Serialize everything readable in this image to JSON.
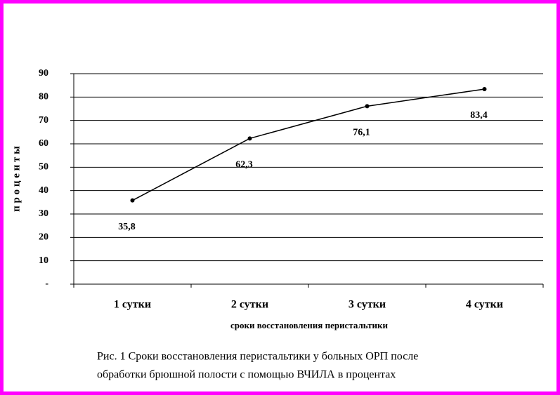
{
  "chart_data": {
    "type": "line",
    "y_label": "п р о ц е н т ы",
    "x_label": "сроки восстановления перистальтики",
    "categories": [
      "1 сутки",
      "2 сутки",
      "3 сутки",
      "4 сутки"
    ],
    "values": [
      35.8,
      62.3,
      76.1,
      83.4
    ],
    "value_labels": [
      "35,8",
      "62,3",
      "76,1",
      "83,4"
    ],
    "color": "#000000",
    "ylim": [
      0,
      90
    ],
    "yticks": [
      {
        "value": 0,
        "label": "-"
      },
      10,
      20,
      30,
      40,
      50,
      60,
      70,
      80,
      90
    ],
    "grid": true,
    "caption": [
      "Рис. 1 Сроки восстановления перистальтики у больных ОРП после",
      "обработки брюшной полости с помощью ВЧИЛА в процентах"
    ]
  }
}
